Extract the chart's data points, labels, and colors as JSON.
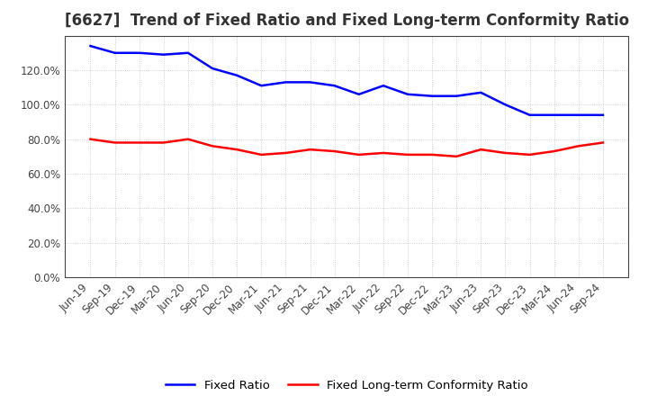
{
  "title": "[6627]  Trend of Fixed Ratio and Fixed Long-term Conformity Ratio",
  "x_labels": [
    "Jun-19",
    "Sep-19",
    "Dec-19",
    "Mar-20",
    "Jun-20",
    "Sep-20",
    "Dec-20",
    "Mar-21",
    "Jun-21",
    "Sep-21",
    "Dec-21",
    "Mar-22",
    "Jun-22",
    "Sep-22",
    "Dec-22",
    "Mar-23",
    "Jun-23",
    "Sep-23",
    "Dec-23",
    "Mar-24",
    "Jun-24",
    "Sep-24"
  ],
  "fixed_ratio": [
    134,
    130,
    130,
    129,
    130,
    121,
    117,
    111,
    113,
    113,
    111,
    106,
    111,
    106,
    105,
    105,
    107,
    100,
    94,
    94,
    94,
    94
  ],
  "fixed_lt_ratio": [
    80,
    78,
    78,
    78,
    80,
    76,
    74,
    71,
    72,
    74,
    73,
    71,
    72,
    71,
    71,
    70,
    74,
    72,
    71,
    73,
    76,
    78
  ],
  "ylim": [
    0,
    140
  ],
  "yticks": [
    0,
    20,
    40,
    60,
    80,
    100,
    120
  ],
  "ytick_labels": [
    "0.0%",
    "20.0%",
    "40.0%",
    "60.0%",
    "80.0%",
    "100.0%",
    "120.0%"
  ],
  "blue_color": "#0000FF",
  "red_color": "#FF0000",
  "legend_fixed_ratio": "Fixed Ratio",
  "legend_fixed_lt_ratio": "Fixed Long-term Conformity Ratio",
  "bg_color": "#FFFFFF",
  "plot_bg_color": "#FFFFFF",
  "grid_color": "#888888",
  "title_fontsize": 12,
  "axis_fontsize": 8.5,
  "legend_fontsize": 9.5,
  "line_width": 1.8
}
